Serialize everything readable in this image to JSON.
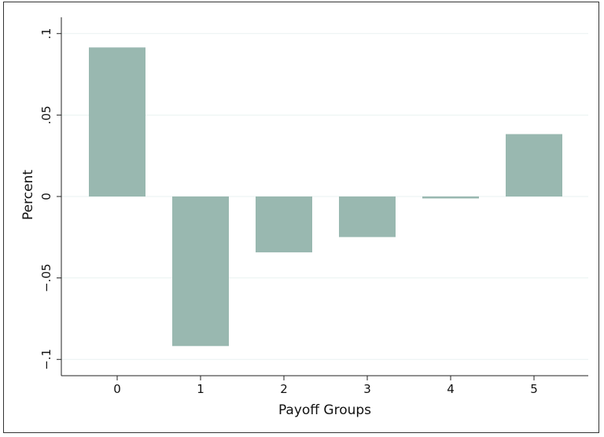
{
  "chart_data": {
    "type": "bar",
    "title": "",
    "xlabel": "Payoff Groups",
    "ylabel": "Percent",
    "categories": [
      "0",
      "1",
      "2",
      "3",
      "4",
      "5"
    ],
    "values": [
      0.0915,
      -0.0918,
      -0.0343,
      -0.0249,
      -0.0012,
      0.0383
    ],
    "ylim": [
      -0.11,
      0.11
    ],
    "yticks": [
      -0.1,
      -0.05,
      0,
      0.05,
      0.1
    ],
    "ytick_labels": [
      "−.1",
      "−.05",
      "0",
      ".05",
      ".1"
    ],
    "grid": true,
    "bar_color": "#99b8b0",
    "grid_color": "#eaf2f1"
  }
}
